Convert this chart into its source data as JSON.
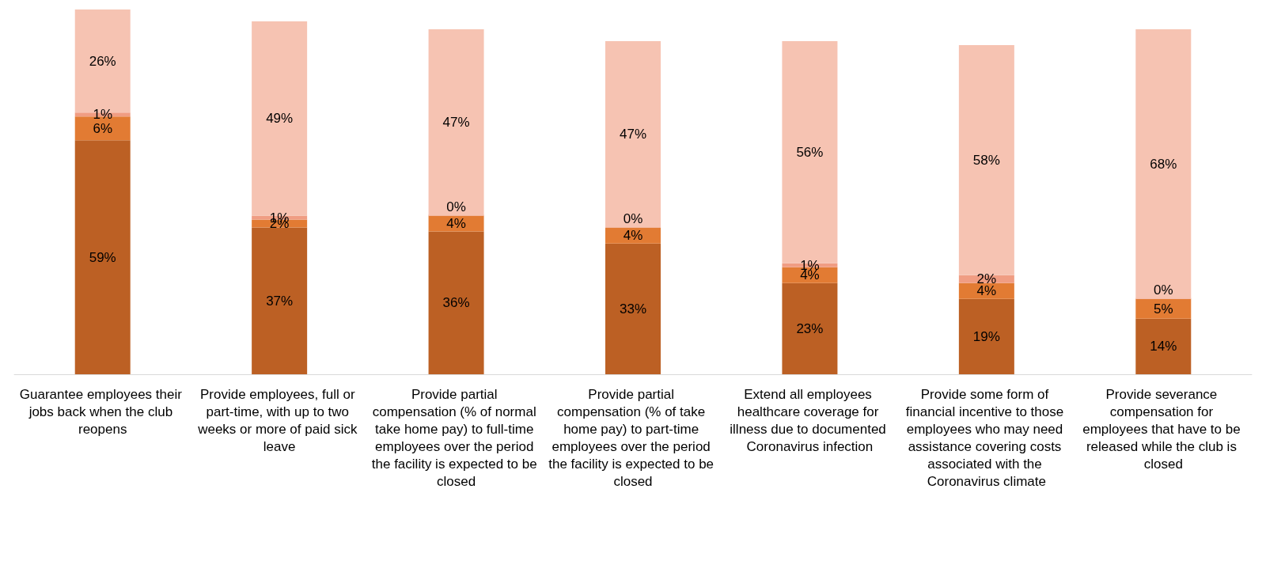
{
  "chart_data": {
    "type": "bar",
    "stacked": true,
    "categories": [
      "Guarantee employees their jobs back when the club reopens",
      "Provide employees, full or part-time, with up to two weeks or more of paid sick leave",
      "Provide partial compensation (% of normal take home pay) to full-time employees over the period the facility is expected to be closed",
      "Provide partial compensation (% of take home pay) to part-time employees over the period the facility is expected to be closed",
      "Extend all employees healthcare coverage for illness due to documented Coronavirus infection",
      "Provide some form of financial incentive to those employees who may need assistance covering costs associated with the Coronavirus climate",
      "Provide severance compensation for employees that have to be released while the club is closed"
    ],
    "series": [
      {
        "color": "#bc6024",
        "values": [
          59,
          37,
          36,
          33,
          23,
          19,
          14
        ],
        "value_labels": [
          "59%",
          "37%",
          "36%",
          "33%",
          "23%",
          "19%",
          "14%"
        ]
      },
      {
        "color": "#e27b33",
        "values": [
          6,
          2,
          4,
          4,
          4,
          4,
          5
        ],
        "value_labels": [
          "6%",
          "2%",
          "4%",
          "4%",
          "4%",
          "4%",
          "5%"
        ]
      },
      {
        "color": "#f09d83",
        "values": [
          1,
          1,
          0,
          0,
          1,
          2,
          0
        ],
        "value_labels": [
          "1%",
          "1%",
          "0%",
          "0%",
          "1%",
          "2%",
          "0%"
        ]
      },
      {
        "color": "#f6c3b2",
        "values": [
          26,
          49,
          47,
          47,
          56,
          58,
          68
        ],
        "value_labels": [
          "26%",
          "49%",
          "47%",
          "47%",
          "56%",
          "58%",
          "68%"
        ]
      }
    ]
  }
}
